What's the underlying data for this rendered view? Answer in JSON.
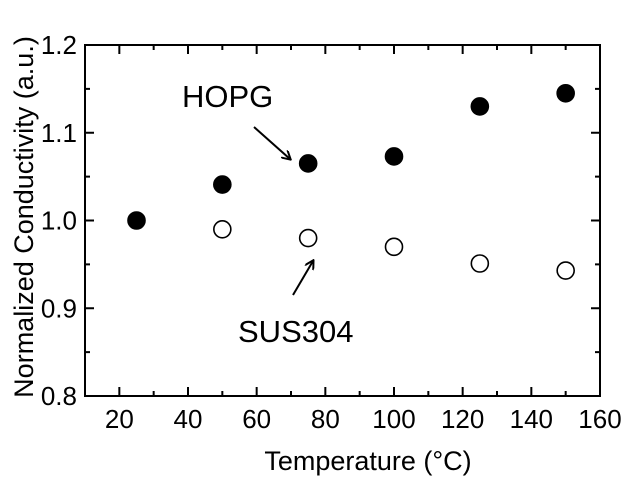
{
  "chart_data": {
    "type": "scatter",
    "title": "",
    "xlabel": "Temperature (°C)",
    "ylabel": "Normalized Conductivity (a.u.)",
    "xlim": [
      10,
      160
    ],
    "ylim": [
      0.8,
      1.2
    ],
    "xticks": [
      20,
      40,
      60,
      80,
      100,
      120,
      140,
      160
    ],
    "yticks": [
      0.8,
      0.9,
      1.0,
      1.1,
      1.2
    ],
    "xtick_labels": [
      "20",
      "40",
      "60",
      "80",
      "100",
      "120",
      "140",
      "160"
    ],
    "ytick_labels": [
      "0.8",
      "0.9",
      "1.0",
      "1.1",
      "1.2"
    ],
    "grid": false,
    "series": [
      {
        "name": "HOPG",
        "marker": "filled-circle",
        "color": "#000000",
        "x": [
          25,
          50,
          75,
          100,
          125,
          150
        ],
        "y": [
          1.0,
          1.041,
          1.065,
          1.073,
          1.13,
          1.145
        ]
      },
      {
        "name": "SUS304",
        "marker": "open-circle",
        "color": "#000000",
        "x": [
          50,
          75,
          100,
          125,
          150
        ],
        "y": [
          0.99,
          0.98,
          0.97,
          0.951,
          0.943
        ]
      }
    ],
    "annotations": [
      {
        "text": "HOPG",
        "series": "HOPG"
      },
      {
        "text": "SUS304",
        "series": "SUS304"
      }
    ]
  }
}
